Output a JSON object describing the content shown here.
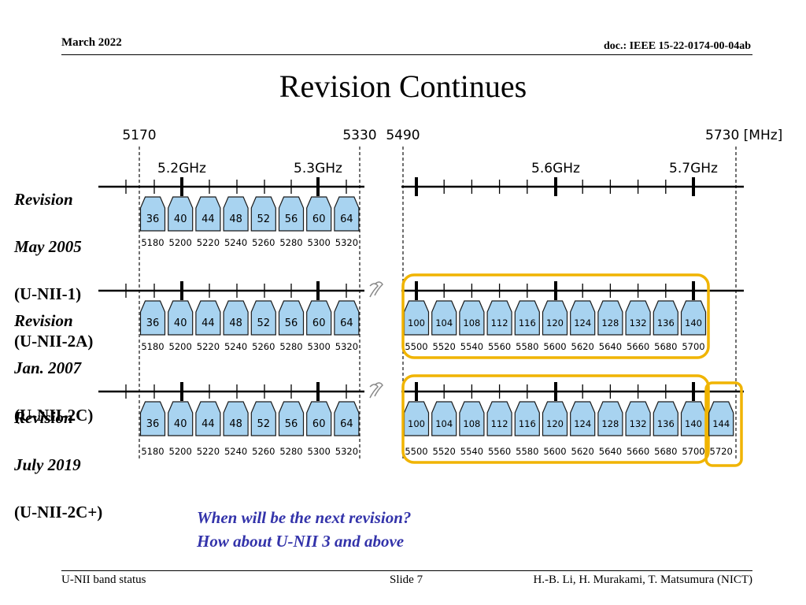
{
  "header": {
    "date": "March 2022",
    "doc_id": "doc.: IEEE 15-22-0174-00-04ab"
  },
  "title": "Revision Continues",
  "axis": {
    "top_freqs": [
      "5170",
      "5330",
      "5490",
      "5730 [MHz]"
    ],
    "ghz_labels": [
      "5.2GHz",
      "5.3GHz",
      "5.6GHz",
      "5.7GHz"
    ]
  },
  "revisions": [
    {
      "line1": "Revision",
      "line2": "May 2005",
      "line3": "(U-NII-1)",
      "line4": "(U-NII-2A)"
    },
    {
      "line1": "Revision",
      "line2": "Jan. 2007",
      "line3": "(U-NII-2C)",
      "line4": ""
    },
    {
      "line1": "Revision",
      "line2": "July 2019",
      "line3": "(U-NII-2C+)",
      "line4": ""
    }
  ],
  "band_low": {
    "channels": [
      "36",
      "40",
      "44",
      "48",
      "52",
      "56",
      "60",
      "64"
    ],
    "freqs": [
      "5180",
      "5200",
      "5220",
      "5240",
      "5260",
      "5280",
      "5300",
      "5320"
    ]
  },
  "band_2c": {
    "channels": [
      "100",
      "104",
      "108",
      "112",
      "116",
      "120",
      "124",
      "128",
      "132",
      "136",
      "140"
    ],
    "freqs": [
      "5500",
      "5520",
      "5540",
      "5560",
      "5580",
      "5600",
      "5620",
      "5640",
      "5660",
      "5680",
      "5700"
    ]
  },
  "band_2c_plus": {
    "channel": "144",
    "freq": "5720"
  },
  "colors": {
    "channel_fill": "#a8d3f0",
    "channel_stroke": "#1a1a1a",
    "highlight": "#f0b400",
    "question_text": "#3333aa"
  },
  "question": {
    "line1": "When will be the next revision?",
    "line2": "How about U-NII 3 and above"
  },
  "footer": {
    "left": "U-NII band status",
    "center": "Slide 7",
    "right": "H.-B. Li, H. Murakami, T. Matsumura (NICT)"
  }
}
